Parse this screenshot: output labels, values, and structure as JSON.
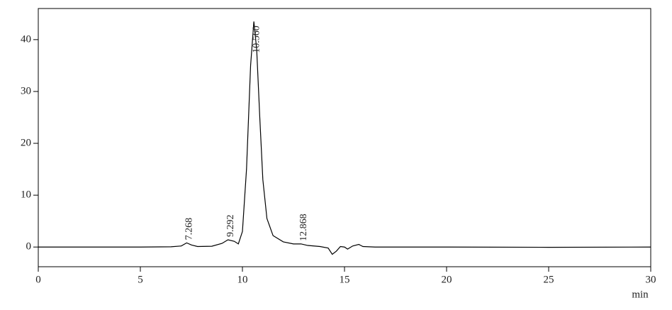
{
  "chart_data": {
    "type": "line",
    "x_label": "min",
    "xlim": [
      0,
      30
    ],
    "xticks": [
      0,
      5,
      10,
      15,
      20,
      25,
      30
    ],
    "ylim": [
      -3.8,
      46
    ],
    "yticks": [
      0,
      10,
      20,
      30,
      40
    ],
    "color": "#000000",
    "x": [
      0,
      5,
      6.5,
      7.0,
      7.268,
      7.5,
      7.8,
      8.5,
      9.0,
      9.292,
      9.6,
      9.8,
      10.0,
      10.2,
      10.4,
      10.56,
      10.7,
      10.85,
      11.0,
      11.2,
      11.5,
      12.0,
      12.5,
      12.868,
      13.2,
      13.8,
      14.2,
      14.4,
      14.6,
      14.8,
      15.0,
      15.15,
      15.4,
      15.7,
      15.9,
      16.5,
      20,
      25,
      30
    ],
    "values": [
      0,
      0,
      0.05,
      0.2,
      0.8,
      0.4,
      0.1,
      0.15,
      0.7,
      1.4,
      1.1,
      0.6,
      3,
      15,
      35,
      43.5,
      38,
      25,
      13,
      5.5,
      2.2,
      1.0,
      0.6,
      0.6,
      0.3,
      0.1,
      -0.2,
      -1.4,
      -0.8,
      0.1,
      0.0,
      -0.4,
      0.2,
      0.5,
      0.1,
      0,
      0,
      -0.05,
      0
    ],
    "annotations": [
      {
        "x": 7.268,
        "y": 0.8,
        "text": "7.268"
      },
      {
        "x": 9.292,
        "y": 1.4,
        "text": "9.292"
      },
      {
        "x": 10.56,
        "y": 43.5,
        "text": "10.560"
      },
      {
        "x": 12.868,
        "y": 0.6,
        "text": "12.868"
      }
    ]
  }
}
